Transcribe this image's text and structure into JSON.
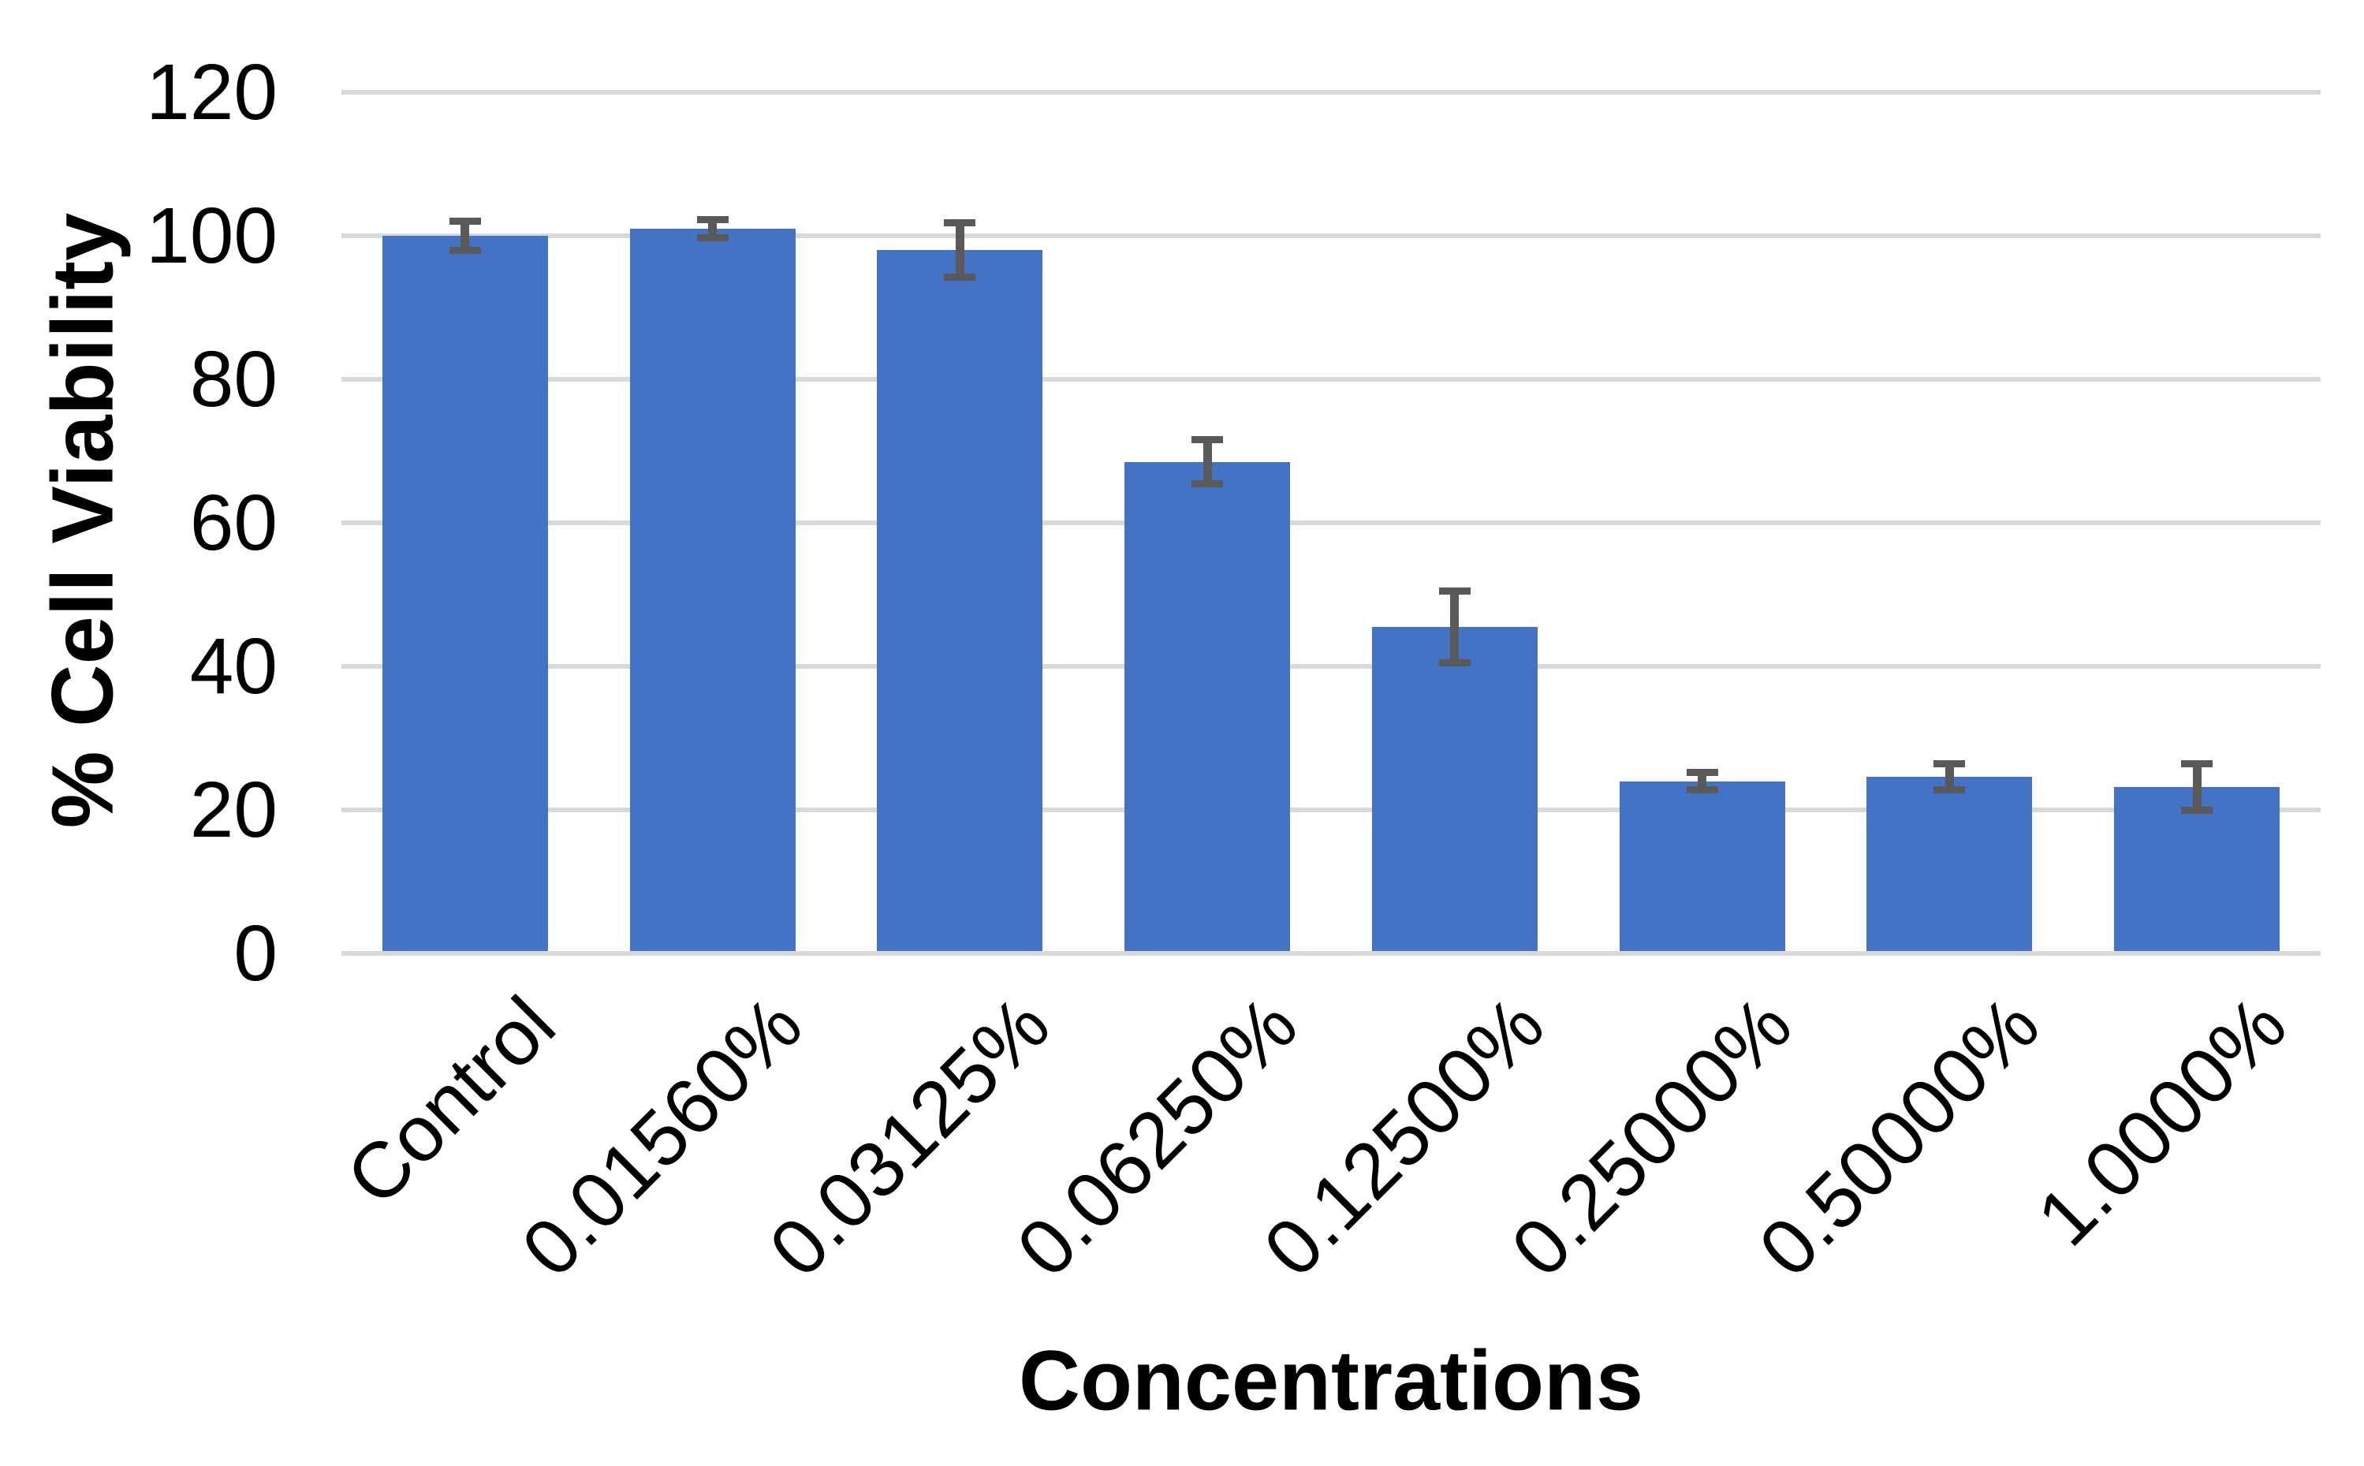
{
  "chart_data": {
    "type": "bar",
    "title": "",
    "xlabel": "Concentrations",
    "ylabel": "% Cell Viability",
    "categories": [
      "Control",
      "0.01560%",
      "0.03125%",
      "0.06250%",
      "0.12500%",
      "0.25000%",
      "0.50000%",
      "1.0000%"
    ],
    "series": [
      {
        "name": "% Cell Viability",
        "values": [
          100,
          101,
          98,
          68.5,
          45.5,
          24,
          24.6,
          23.2
        ],
        "errors": [
          2,
          1.3,
          3.8,
          3.1,
          5,
          1.2,
          1.8,
          3.2
        ]
      }
    ],
    "ylim": [
      0,
      120
    ],
    "yticks": [
      0,
      20,
      40,
      60,
      80,
      100,
      120
    ],
    "grid": true,
    "legend": false,
    "x_tick_rotation_deg": 45,
    "bar_color": "#4472C4",
    "error_bar_color": "#595959",
    "gridline_color": "#D9D9D9",
    "background_color": "#FFFFFF",
    "text_color": "#000000"
  }
}
